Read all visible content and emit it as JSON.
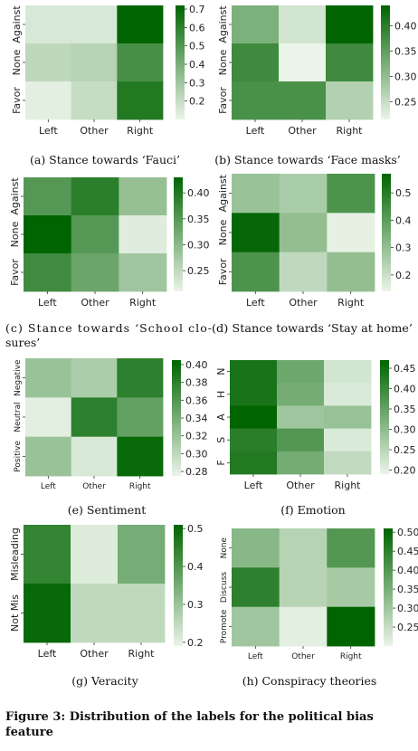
{
  "figure_caption": "Figure 3: Distribution of the labels for the political bias feature",
  "chart_data": [
    {
      "type": "heatmap",
      "id": "a",
      "caption": "(a) Stance towards ‘Fauci’",
      "x_categories": [
        "Left",
        "Other",
        "Right"
      ],
      "y_categories": [
        "Against",
        "None",
        "Favor"
      ],
      "values": [
        [
          0.15,
          0.15,
          0.72
        ],
        [
          0.22,
          0.24,
          0.53
        ],
        [
          0.12,
          0.2,
          0.63
        ]
      ],
      "colorbar": {
        "min": 0.1,
        "max": 0.72,
        "ticks": [
          "0.7",
          "0.6",
          "0.5",
          "0.4",
          "0.3",
          "0.2"
        ],
        "tick_values": [
          0.7,
          0.6,
          0.5,
          0.4,
          0.3,
          0.2
        ]
      },
      "colormap": [
        "#ebf4e9",
        "#006400"
      ]
    },
    {
      "type": "heatmap",
      "id": "b",
      "caption": "(b) Stance towards ‘Face masks’",
      "x_categories": [
        "Left",
        "Other",
        "Right"
      ],
      "y_categories": [
        "Against",
        "None",
        "Favor"
      ],
      "values": [
        [
          0.32,
          0.24,
          0.44
        ],
        [
          0.38,
          0.21,
          0.38
        ],
        [
          0.37,
          0.37,
          0.27
        ]
      ],
      "colorbar": {
        "min": 0.215,
        "max": 0.44,
        "ticks": [
          "0.40",
          "0.35",
          "0.30",
          "0.25"
        ],
        "tick_values": [
          0.4,
          0.35,
          0.3,
          0.25
        ]
      },
      "colormap": [
        "#ebf4e9",
        "#006400"
      ]
    },
    {
      "type": "heatmap",
      "id": "c",
      "caption": "(c) Stance towards ‘School closures’",
      "x_categories": [
        "Left",
        "Other",
        "Right"
      ],
      "y_categories": [
        "Against",
        "None",
        "Favor"
      ],
      "values": [
        [
          0.35,
          0.39,
          0.29
        ],
        [
          0.43,
          0.35,
          0.22
        ],
        [
          0.37,
          0.33,
          0.28
        ]
      ],
      "colorbar": {
        "min": 0.21,
        "max": 0.43,
        "ticks": [
          "0.40",
          "0.35",
          "0.30",
          "0.25"
        ],
        "tick_values": [
          0.4,
          0.35,
          0.3,
          0.25
        ]
      },
      "colormap": [
        "#ebf4e9",
        "#006400"
      ]
    },
    {
      "type": "heatmap",
      "id": "d",
      "caption": "(d) Stance towards ‘Stay at home’",
      "x_categories": [
        "Left",
        "Other",
        "Right"
      ],
      "y_categories": [
        "Against",
        "None",
        "Favor"
      ],
      "values": [
        [
          0.29,
          0.26,
          0.43
        ],
        [
          0.56,
          0.3,
          0.15
        ],
        [
          0.43,
          0.22,
          0.3
        ]
      ],
      "colorbar": {
        "min": 0.14,
        "max": 0.57,
        "ticks": [
          "0.5",
          "0.4",
          "0.3",
          "0.2"
        ],
        "tick_values": [
          0.5,
          0.4,
          0.3,
          0.2
        ]
      },
      "colormap": [
        "#ebf4e9",
        "#006400"
      ]
    },
    {
      "type": "heatmap",
      "id": "e",
      "caption": "(e) Sentiment",
      "x_categories": [
        "Left",
        "Other",
        "Right"
      ],
      "y_categories": [
        "Negative",
        "Neutral",
        "Positive"
      ],
      "values": [
        [
          0.32,
          0.31,
          0.38
        ],
        [
          0.28,
          0.38,
          0.35
        ],
        [
          0.32,
          0.285,
          0.4
        ]
      ],
      "colorbar": {
        "min": 0.275,
        "max": 0.405,
        "ticks": [
          "0.40",
          "0.38",
          "0.36",
          "0.34",
          "0.32",
          "0.30",
          "0.28"
        ],
        "tick_values": [
          0.4,
          0.38,
          0.36,
          0.34,
          0.32,
          0.3,
          0.28
        ]
      },
      "colormap": [
        "#ebf4e9",
        "#006400"
      ]
    },
    {
      "type": "heatmap",
      "id": "f",
      "caption": "(f) Emotion",
      "x_categories": [
        "Left",
        "Other",
        "Right"
      ],
      "y_categories": [
        "N",
        "H",
        "A",
        "S",
        "F"
      ],
      "values": [
        [
          0.44,
          0.34,
          0.22
        ],
        [
          0.44,
          0.33,
          0.21
        ],
        [
          0.47,
          0.28,
          0.29
        ],
        [
          0.42,
          0.37,
          0.21
        ],
        [
          0.43,
          0.33,
          0.24
        ]
      ],
      "colorbar": {
        "min": 0.19,
        "max": 0.47,
        "ticks": [
          "0.45",
          "0.40",
          "0.35",
          "0.30",
          "0.25",
          "0.20"
        ],
        "tick_values": [
          0.45,
          0.4,
          0.35,
          0.3,
          0.25,
          0.2
        ]
      },
      "colormap": [
        "#ebf4e9",
        "#006400"
      ]
    },
    {
      "type": "heatmap",
      "id": "g",
      "caption": "(g) Veracity",
      "x_categories": [
        "Left",
        "Other",
        "Right"
      ],
      "y_categories": [
        "Misleading",
        "Not Mis"
      ],
      "values": [
        [
          0.44,
          0.21,
          0.35
        ],
        [
          0.5,
          0.25,
          0.25
        ]
      ],
      "colorbar": {
        "min": 0.19,
        "max": 0.51,
        "ticks": [
          "0.5",
          "0.4",
          "0.3",
          "0.2"
        ],
        "tick_values": [
          0.5,
          0.4,
          0.3,
          0.2
        ]
      },
      "colormap": [
        "#ebf4e9",
        "#006400"
      ]
    },
    {
      "type": "heatmap",
      "id": "h",
      "caption": "(h) Conspiracy theories",
      "x_categories": [
        "Left",
        "Other",
        "Right"
      ],
      "y_categories": [
        "None",
        "Discuss",
        "Promote"
      ],
      "values": [
        [
          0.33,
          0.27,
          0.4
        ],
        [
          0.45,
          0.27,
          0.29
        ],
        [
          0.3,
          0.21,
          0.51
        ]
      ],
      "colorbar": {
        "min": 0.2,
        "max": 0.51,
        "ticks": [
          "0.50",
          "0.45",
          "0.40",
          "0.35",
          "0.30",
          "0.25"
        ],
        "tick_values": [
          0.5,
          0.45,
          0.4,
          0.35,
          0.3,
          0.25
        ]
      },
      "colormap": [
        "#ebf4e9",
        "#006400"
      ]
    }
  ]
}
